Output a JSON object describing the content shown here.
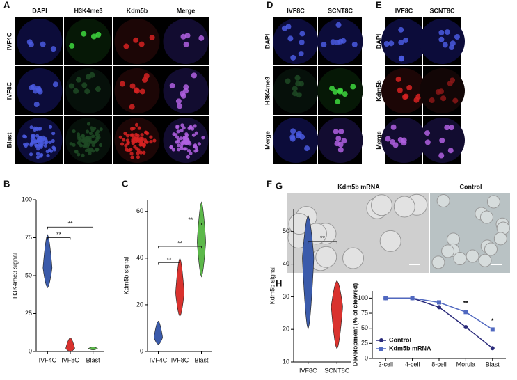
{
  "image_panels": [
    {
      "letter": "A",
      "columns": [
        "DAPI",
        "H3K4me3",
        "Kdm5b",
        "Merge"
      ],
      "rows": [
        "IVF4C",
        "IVF8C",
        "Blast"
      ]
    },
    {
      "letter": "D",
      "columns": [
        "IVF8C",
        "SCNT8C"
      ],
      "rows": [
        "DAPI",
        "H3K4me3",
        "Merge"
      ]
    },
    {
      "letter": "E",
      "columns": [
        "IVF8C",
        "SCNT8C"
      ],
      "rows": [
        "DAPI",
        "Kdm5b",
        "Merge"
      ]
    },
    {
      "letter": "G",
      "columns": [
        "Kdm5b mRNA",
        "Control"
      ]
    }
  ],
  "chart_data": [
    {
      "letter": "B",
      "type": "violin",
      "ylabel": "H3K4me3 signal",
      "categories": [
        "IVF4C",
        "IVF8C",
        "Blast"
      ],
      "violins": [
        {
          "color": "#3b5bab",
          "min": 42,
          "median": 55,
          "max": 77
        },
        {
          "color": "#d9322e",
          "min": 0,
          "median": 2,
          "max": 9
        },
        {
          "color": "#5cb84a",
          "min": 1,
          "median": 2,
          "max": 3
        }
      ],
      "ylim": [
        0,
        100
      ],
      "yticks": [
        0,
        25,
        50,
        75,
        100
      ],
      "brackets": [
        {
          "pair": [
            "IVF4C",
            "IVF8C"
          ],
          "y": 75,
          "label": "**"
        },
        {
          "pair": [
            "IVF4C",
            "Blast"
          ],
          "y": 82,
          "label": "**"
        }
      ]
    },
    {
      "letter": "C",
      "type": "violin",
      "ylabel": "Kdm5b signal",
      "categories": [
        "IVF4C",
        "IVF8C",
        "Blast"
      ],
      "violins": [
        {
          "color": "#3b5bab",
          "min": 3,
          "median": 6,
          "max": 13
        },
        {
          "color": "#d9322e",
          "min": 15,
          "median": 25,
          "max": 40
        },
        {
          "color": "#5cb84a",
          "min": 32,
          "median": 47,
          "max": 64
        }
      ],
      "ylim": [
        0,
        65
      ],
      "yticks": [
        0,
        20,
        40,
        60
      ],
      "brackets": [
        {
          "pair": [
            "IVF4C",
            "IVF8C"
          ],
          "y": 38,
          "label": "**"
        },
        {
          "pair": [
            "IVF4C",
            "Blast"
          ],
          "y": 45,
          "label": "**"
        },
        {
          "pair": [
            "IVF8C",
            "Blast"
          ],
          "y": 55,
          "label": "**"
        }
      ]
    },
    {
      "letter": "F",
      "type": "violin",
      "ylabel": "Kdm5b signal",
      "categories": [
        "IVF8C",
        "SCNT8C"
      ],
      "violins": [
        {
          "color": "#3b5bab",
          "min": 20,
          "median": 42,
          "max": 55
        },
        {
          "color": "#d9322e",
          "min": 14,
          "median": 27,
          "max": 35
        }
      ],
      "ylim": [
        10,
        57
      ],
      "yticks": [
        10,
        20,
        30,
        40,
        50
      ],
      "brackets": [
        {
          "pair": [
            "IVF8C",
            "SCNT8C"
          ],
          "y": 47,
          "label": "**"
        }
      ]
    },
    {
      "letter": "H",
      "type": "line",
      "ylabel": "Development (% of cleaved)",
      "categories": [
        "2-cell",
        "4-cell",
        "8-cell",
        "Morula",
        "Blast"
      ],
      "series": [
        {
          "name": "Control",
          "color": "#2a2a7a",
          "marker": "circle",
          "values": [
            100,
            100,
            85,
            52,
            17
          ]
        },
        {
          "name": "Kdm5b mRNA",
          "color": "#5068c0",
          "marker": "square",
          "values": [
            100,
            100,
            93,
            77,
            48
          ]
        }
      ],
      "ylim": [
        0,
        112
      ],
      "yticks": [
        0,
        25,
        50,
        75,
        100
      ],
      "annotations": [
        {
          "x": "Morula",
          "label": "**"
        },
        {
          "x": "Blast",
          "label": "*"
        }
      ]
    }
  ]
}
